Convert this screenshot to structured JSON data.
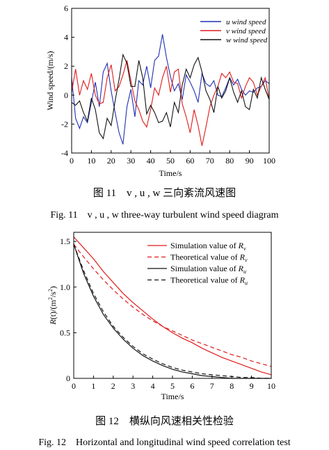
{
  "figure11": {
    "caption_zh": "图 11　v , u , w 三向紊流风速图",
    "caption_en": "Fig. 11　v , u , w three-way turbulent wind speed diagram",
    "chart_data": {
      "type": "line",
      "xlabel": "Time/s",
      "ylabel": "Wind speed/(m/s)",
      "xlim": [
        0,
        100
      ],
      "ylim": [
        -4,
        6
      ],
      "xticks": [
        0,
        10,
        20,
        30,
        40,
        50,
        60,
        70,
        80,
        90,
        100
      ],
      "yticks": [
        -4,
        -2,
        0,
        2,
        4,
        6
      ],
      "grid": false,
      "legend_position": "top-right",
      "x": [
        0,
        2,
        4,
        6,
        8,
        10,
        12,
        14,
        16,
        18,
        20,
        22,
        24,
        26,
        28,
        30,
        32,
        34,
        36,
        38,
        40,
        42,
        44,
        46,
        48,
        50,
        52,
        54,
        56,
        58,
        60,
        62,
        64,
        66,
        68,
        70,
        72,
        74,
        76,
        78,
        80,
        82,
        84,
        86,
        88,
        90,
        92,
        94,
        96,
        98,
        100
      ],
      "series": [
        {
          "name": "u wind speed",
          "color": "#1f2fb5",
          "values": [
            1.2,
            -1.6,
            -2.3,
            -1.5,
            -1.9,
            -0.5,
            0.9,
            -0.8,
            1.6,
            2.2,
            0.3,
            -1.2,
            -2.6,
            -3.4,
            -0.8,
            0.4,
            -1.5,
            1.0,
            0.7,
            2.0,
            0.5,
            2.4,
            2.7,
            4.2,
            2.6,
            1.3,
            0.3,
            0.8,
            -0.3,
            1.4,
            0.9,
            0.3,
            -0.5,
            1.5,
            0.8,
            0.6,
            1.0,
            0.0,
            -0.1,
            0.5,
            1.2,
            0.7,
            1.1,
            0.4,
            0.0,
            0.3,
            0.2,
            0.5,
            0.6,
            1.0,
            0.8
          ]
        },
        {
          "name": "v wind speed",
          "color": "#e01a1a",
          "values": [
            0.2,
            1.8,
            0.0,
            1.0,
            0.4,
            1.5,
            0.0,
            -0.6,
            -0.5,
            1.2,
            2.1,
            0.3,
            0.6,
            1.4,
            2.4,
            1.0,
            -0.4,
            -1.0,
            -1.8,
            -2.2,
            -1.0,
            0.5,
            0.0,
            1.2,
            2.0,
            0.2,
            1.6,
            1.8,
            -0.6,
            -1.5,
            -2.6,
            -1.0,
            -2.1,
            -3.5,
            -2.2,
            -0.8,
            0.0,
            0.6,
            1.5,
            1.2,
            1.6,
            0.9,
            0.8,
            -0.2,
            0.6,
            1.2,
            0.9,
            0.0,
            0.6,
            1.2,
            -0.3
          ]
        },
        {
          "name": "w wind speed",
          "color": "#111111",
          "values": [
            -0.5,
            -0.7,
            -0.4,
            -1.2,
            -1.8,
            -0.2,
            -1.0,
            -2.6,
            -3.0,
            -1.6,
            -2.1,
            -0.4,
            1.1,
            2.8,
            2.2,
            0.6,
            0.6,
            2.4,
            1.2,
            -1.3,
            -0.7,
            -1.2,
            -1.9,
            -1.8,
            -1.2,
            -2.2,
            -0.5,
            -1.2,
            0.7,
            1.8,
            1.2,
            2.1,
            2.6,
            1.6,
            0.3,
            -0.3,
            -1.2,
            0.6,
            -0.2,
            0.3,
            1.2,
            0.2,
            -0.5,
            0.3,
            -0.8,
            -1.0,
            0.4,
            -0.2,
            1.2,
            0.4,
            -0.3
          ]
        }
      ]
    }
  },
  "figure12": {
    "caption_zh": "图 12　横纵向风速相关性检验",
    "caption_en": "Fig. 12　Horizontal and longitudinal wind speed correlation test",
    "chart_data": {
      "type": "line",
      "xlabel": "Time/s",
      "ylabel": "R(t)/(m²/s²)",
      "xlim": [
        0,
        10
      ],
      "ylim": [
        0,
        1.6
      ],
      "xticks": [
        0,
        1,
        2,
        3,
        4,
        5,
        6,
        7,
        8,
        9,
        10
      ],
      "yticks": [
        0,
        0.5,
        1.0,
        1.5
      ],
      "ytick_labels": [
        "0",
        "0.5",
        "1.0",
        "1.5"
      ],
      "grid": false,
      "legend_position": "top-right",
      "x": [
        0,
        0.5,
        1,
        1.5,
        2,
        2.5,
        3,
        3.5,
        4,
        4.5,
        5,
        5.5,
        6,
        6.5,
        7,
        7.5,
        8,
        8.5,
        9,
        9.5,
        10
      ],
      "series": [
        {
          "label_prefix": "Simulation value of ",
          "label_sub": "v",
          "color": "#e01a1a",
          "dash": "solid",
          "values": [
            1.55,
            1.43,
            1.31,
            1.17,
            1.05,
            0.93,
            0.83,
            0.74,
            0.65,
            0.57,
            0.5,
            0.44,
            0.39,
            0.33,
            0.28,
            0.23,
            0.19,
            0.15,
            0.11,
            0.07,
            0.04
          ]
        },
        {
          "label_prefix": "Theoretical value of ",
          "label_sub": "v",
          "color": "#e01a1a",
          "dash": "dashed",
          "values": [
            1.47,
            1.33,
            1.2,
            1.08,
            0.97,
            0.87,
            0.78,
            0.7,
            0.63,
            0.57,
            0.52,
            0.47,
            0.42,
            0.38,
            0.34,
            0.3,
            0.26,
            0.23,
            0.19,
            0.16,
            0.13
          ]
        },
        {
          "label_prefix": "Simulation value of ",
          "label_sub": "u",
          "color": "#111111",
          "dash": "solid",
          "values": [
            1.47,
            1.15,
            0.9,
            0.7,
            0.55,
            0.43,
            0.33,
            0.25,
            0.19,
            0.14,
            0.1,
            0.07,
            0.05,
            0.03,
            0.02,
            0.01,
            0.0,
            0.0,
            0.0,
            0.0,
            0.0
          ]
        },
        {
          "label_prefix": "Theoretical value of ",
          "label_sub": "u",
          "color": "#111111",
          "dash": "dashed",
          "values": [
            1.47,
            1.18,
            0.93,
            0.73,
            0.57,
            0.45,
            0.35,
            0.27,
            0.21,
            0.16,
            0.12,
            0.09,
            0.07,
            0.05,
            0.04,
            0.03,
            0.02,
            0.01,
            0.01,
            0.0,
            0.0
          ]
        }
      ]
    }
  }
}
